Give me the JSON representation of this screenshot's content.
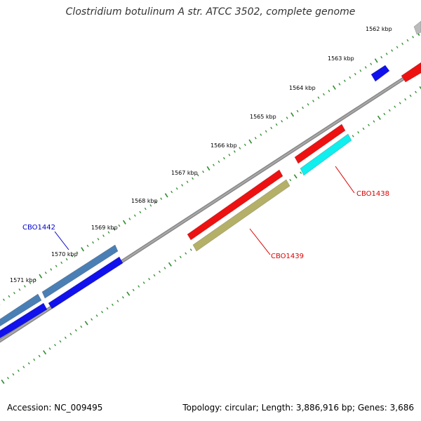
{
  "title": "Clostridium botulinum A str. ATCC 3502, complete genome",
  "footer": {
    "accession": "Accession: NC_009495",
    "summary": "Topology: circular; Length: 3,886,916 bp; Genes: 3,686"
  },
  "ticks": [
    "1562 kbp",
    "1563 kbp",
    "1564 kbp",
    "1565 kbp",
    "1566 kbp",
    "1567 kbp",
    "1568 kbp",
    "1569 kbp",
    "1570 kbp",
    "1571 kbp"
  ],
  "gene_labels": [
    {
      "text": "CBO1442",
      "color": "#0000cc"
    },
    {
      "text": "CBO1438",
      "color": "#dd0000"
    },
    {
      "text": "CBO1439",
      "color": "#dd0000"
    }
  ],
  "colors": {
    "backbone": "#888888",
    "tick_green": "#2e8b2e",
    "red": "#ee1111",
    "blue": "#1111ee",
    "steelblue": "#4a7fb5",
    "cyan": "#11eeee",
    "olive": "#b5b068",
    "grey": "#bbbbbb"
  }
}
